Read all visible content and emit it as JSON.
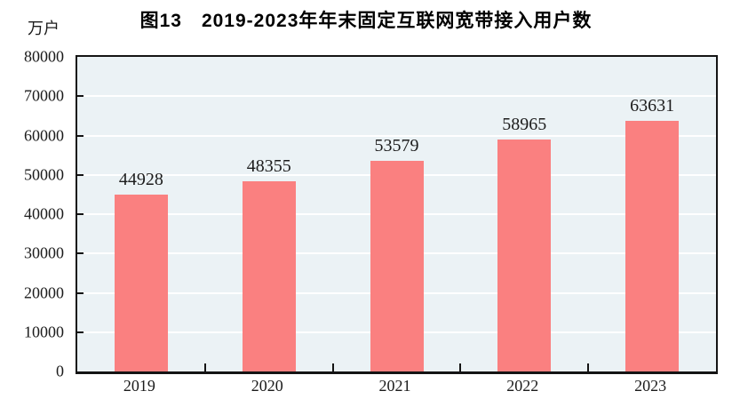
{
  "figure": {
    "title": "图13　2019-2023年年末固定互联网宽带接入用户数",
    "unit_label": "万户"
  },
  "chart_data": {
    "type": "bar",
    "title": "图13　2019-2023年年末固定互联网宽带接入用户数",
    "ylabel": "万户",
    "xlabel": "",
    "categories": [
      "2019",
      "2020",
      "2021",
      "2022",
      "2023"
    ],
    "values": [
      44928,
      48355,
      53579,
      58965,
      63631
    ],
    "data_labels": [
      "44928",
      "48355",
      "53579",
      "58965",
      "63631"
    ],
    "ylim": [
      0,
      80000
    ],
    "ytick_interval": 10000,
    "yticks": [
      0,
      10000,
      20000,
      30000,
      40000,
      50000,
      60000,
      70000,
      80000
    ],
    "grid": true,
    "legend": false,
    "colors": {
      "bar": "#fa8080",
      "plot_background": "#ebf2f5",
      "gridline": "#ffffff",
      "axis": "#141414",
      "text": "#1b1b1b"
    }
  }
}
